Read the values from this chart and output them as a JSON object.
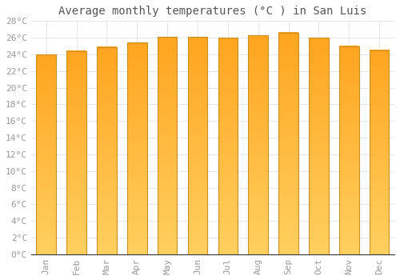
{
  "title": "Average monthly temperatures (°C ) in San Luis",
  "months": [
    "Jan",
    "Feb",
    "Mar",
    "Apr",
    "May",
    "Jun",
    "Jul",
    "Aug",
    "Sep",
    "Oct",
    "Nov",
    "Dec"
  ],
  "temperatures": [
    24.0,
    24.4,
    24.9,
    25.4,
    26.1,
    26.1,
    26.0,
    26.3,
    26.6,
    26.0,
    25.0,
    24.5
  ],
  "bar_color_top": "#FFA520",
  "bar_color_bottom": "#FFD060",
  "bar_edge_color": "#C89020",
  "ylim": [
    0,
    28
  ],
  "ytick_step": 2,
  "background_color": "#ffffff",
  "grid_color": "#dddddd",
  "title_fontsize": 10,
  "tick_fontsize": 8,
  "tick_label_color": "#999999",
  "font_family": "monospace",
  "bar_width": 0.65
}
